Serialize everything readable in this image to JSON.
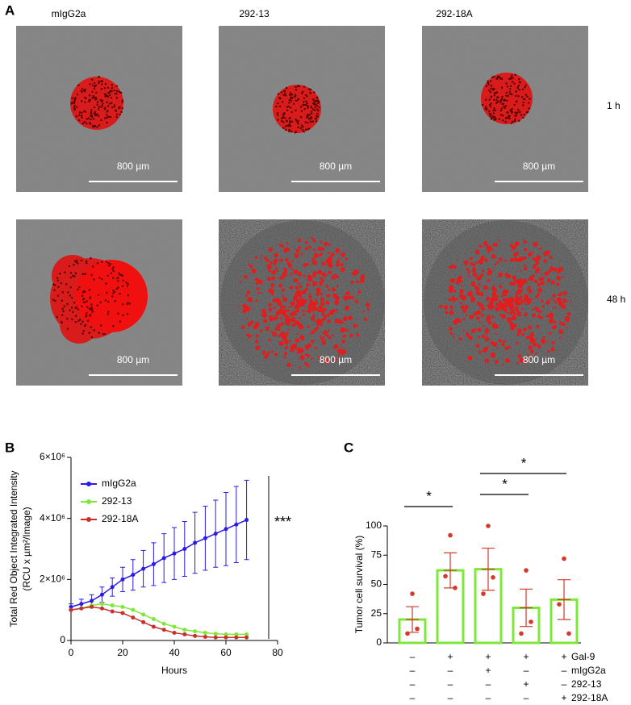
{
  "panel_labels": [
    "A",
    "B",
    "C"
  ],
  "panel_a": {
    "columns": [
      "mIgG2a",
      "292-13",
      "292-18A"
    ],
    "rows": [
      "1 h",
      "48 h"
    ],
    "scale_bar": "800 µm"
  },
  "chart_data": [
    {
      "type": "line",
      "ylabel": [
        "Total Red Object Integrated Intensity",
        "(RCU x µm²/Image)"
      ],
      "xlabel": "Hours",
      "x": [
        0,
        4,
        8,
        12,
        16,
        20,
        24,
        28,
        32,
        36,
        40,
        44,
        48,
        52,
        56,
        60,
        64,
        68
      ],
      "series": [
        {
          "name": "mIgG2a",
          "color": "#2a1be8",
          "values": [
            1100000,
            1200000,
            1300000,
            1500000,
            1750000,
            2000000,
            2150000,
            2350000,
            2500000,
            2700000,
            2850000,
            3000000,
            3200000,
            3350000,
            3500000,
            3650000,
            3800000,
            3950000
          ],
          "errors": [
            100000,
            150000,
            200000,
            250000,
            300000,
            400000,
            500000,
            600000,
            700000,
            800000,
            850000,
            900000,
            1000000,
            1050000,
            1100000,
            1200000,
            1250000,
            1300000
          ]
        },
        {
          "name": "292-13",
          "color": "#7ee83a",
          "values": [
            1000000,
            1050000,
            1150000,
            1200000,
            1150000,
            1100000,
            1000000,
            850000,
            700000,
            550000,
            450000,
            350000,
            300000,
            250000,
            220000,
            200000,
            200000,
            200000
          ]
        },
        {
          "name": "292-18A",
          "color": "#c8302a",
          "values": [
            1000000,
            1050000,
            1100000,
            1050000,
            950000,
            900000,
            750000,
            600000,
            450000,
            350000,
            250000,
            200000,
            150000,
            120000,
            100000,
            100000,
            100000,
            100000
          ]
        }
      ],
      "xlim": [
        0,
        80
      ],
      "xticks": [
        0,
        20,
        40,
        60,
        80
      ],
      "ylim": [
        0,
        6000000
      ],
      "yticks": [
        0,
        {
          "value": 2000000,
          "label": "2×10⁶"
        },
        {
          "value": 4000000,
          "label": "4×10⁶"
        },
        {
          "value": 6000000,
          "label": "6×10⁶"
        }
      ],
      "annotation": "***"
    },
    {
      "type": "bar",
      "ylabel": "Tumor cell survival (%)",
      "color": "#7ee83a",
      "point_color": "#d23a2a",
      "error_color": "#d23a2a",
      "categories": [
        null,
        null,
        null,
        null,
        null
      ],
      "values": [
        20,
        62,
        63,
        30,
        37
      ],
      "errors": [
        11,
        15,
        18,
        16,
        17
      ],
      "points": [
        [
          42,
          8,
          12
        ],
        [
          92,
          57,
          47
        ],
        [
          100,
          42,
          56
        ],
        [
          62,
          8,
          18
        ],
        [
          72,
          33,
          8
        ]
      ],
      "ylim": [
        0,
        100
      ],
      "yticks": [
        0,
        25,
        50,
        75,
        100
      ],
      "annotations": [
        "*",
        "*",
        "*"
      ],
      "treatments": [
        {
          "label": "Gal-9",
          "signs": [
            "–",
            "+",
            "+",
            "+",
            "+"
          ]
        },
        {
          "label": "mIgG2a",
          "signs": [
            "–",
            "–",
            "+",
            "–",
            "–"
          ]
        },
        {
          "label": "292-13",
          "signs": [
            "–",
            "–",
            "–",
            "+",
            "–"
          ]
        },
        {
          "label": "292-18A",
          "signs": [
            "–",
            "–",
            "–",
            "–",
            "+"
          ]
        }
      ]
    }
  ]
}
